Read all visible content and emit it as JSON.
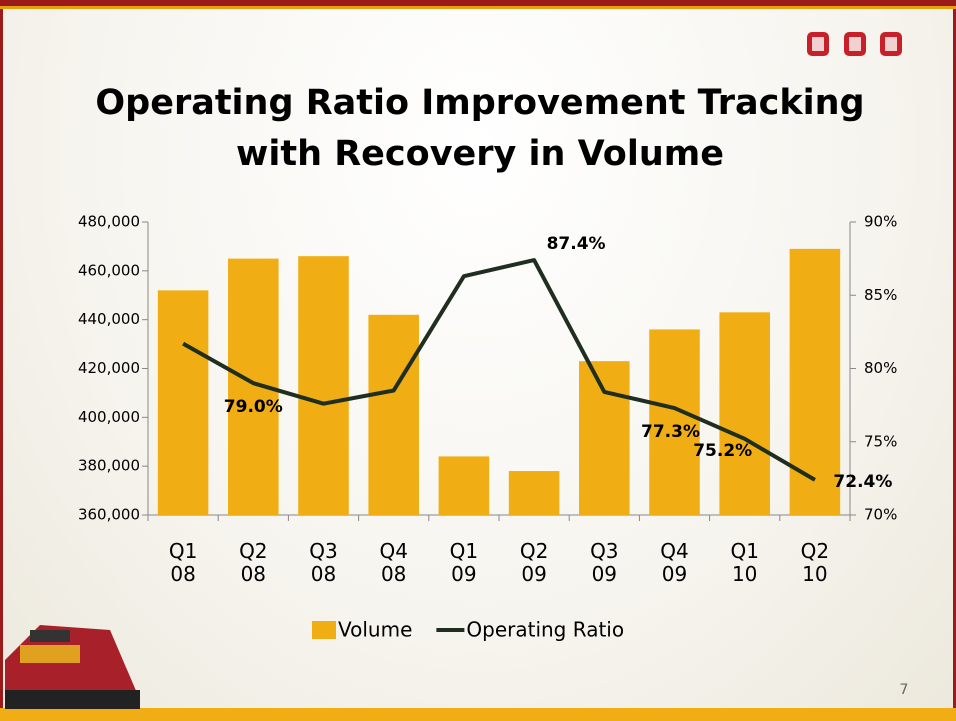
{
  "chart_data": {
    "type": "bar-line",
    "title": "Operating Ratio Improvement Tracking\nwith Recovery in Volume",
    "categories": [
      "Q1\n08",
      "Q2\n08",
      "Q3\n08",
      "Q4\n08",
      "Q1\n09",
      "Q2\n09",
      "Q3\n09",
      "Q4\n09",
      "Q1\n10",
      "Q2\n10"
    ],
    "series": [
      {
        "name": "Volume",
        "type": "bar",
        "color": "#f0ad14",
        "values": [
          452000,
          465000,
          466000,
          442000,
          384000,
          378000,
          423000,
          436000,
          443000,
          469000
        ]
      },
      {
        "name": "Operating Ratio",
        "type": "line",
        "axis": "y2",
        "color": "#1f2e1f",
        "values": [
          81.7,
          79.0,
          77.6,
          78.5,
          86.3,
          87.4,
          78.4,
          77.3,
          75.2,
          72.4
        ],
        "value_labels": [
          null,
          "79.0%",
          null,
          null,
          null,
          "87.4%",
          null,
          "77.3%",
          "75.2%",
          "72.4%"
        ]
      }
    ],
    "ylim": [
      360000,
      480000
    ],
    "yticks": [
      {
        "value": 360000,
        "label": "360,000"
      },
      {
        "value": 380000,
        "label": "380,000"
      },
      {
        "value": 400000,
        "label": "400,000"
      },
      {
        "value": 420000,
        "label": "420,000"
      },
      {
        "value": 440000,
        "label": "440,000"
      },
      {
        "value": 460000,
        "label": "460,000"
      },
      {
        "value": 480000,
        "label": "480,000"
      }
    ],
    "y2lim": [
      70,
      90
    ],
    "y2ticks": [
      {
        "value": 70,
        "label": "70%"
      },
      {
        "value": 75,
        "label": "75%"
      },
      {
        "value": 80,
        "label": "80%"
      },
      {
        "value": 85,
        "label": "85%"
      },
      {
        "value": 90,
        "label": "90%"
      }
    ],
    "legend": "bottom",
    "slide_number": "7"
  }
}
